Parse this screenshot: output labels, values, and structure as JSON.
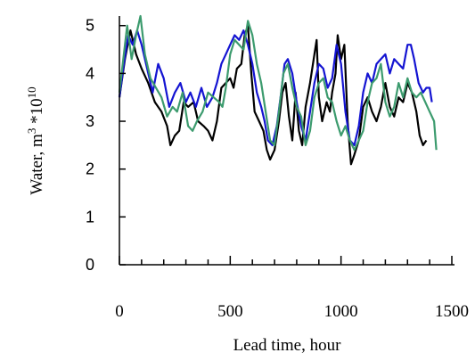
{
  "chart_data": {
    "type": "line",
    "xlabel": "Lead time, hour",
    "ylabel": {
      "base": "Water, m",
      "exp1": "3",
      "mid": " *10",
      "exp2": "10"
    },
    "xlim": [
      0,
      1500
    ],
    "ylim": [
      0,
      5.2
    ],
    "xticks": [
      0,
      500,
      1000,
      1500
    ],
    "xtick_labels": [
      "0",
      "500",
      "1000",
      "1500"
    ],
    "yticks": [
      0,
      1,
      2,
      3,
      4,
      5
    ],
    "ytick_labels": [
      "0",
      "1",
      "2",
      "3",
      "4",
      "5"
    ],
    "grid": false,
    "series": [
      {
        "color": "#000000",
        "points": [
          [
            0,
            3.5
          ],
          [
            25,
            4.3
          ],
          [
            50,
            4.9
          ],
          [
            75,
            4.4
          ],
          [
            100,
            4.1
          ],
          [
            130,
            3.8
          ],
          [
            160,
            3.4
          ],
          [
            190,
            3.2
          ],
          [
            215,
            2.9
          ],
          [
            230,
            2.5
          ],
          [
            250,
            2.7
          ],
          [
            270,
            2.8
          ],
          [
            290,
            3.4
          ],
          [
            310,
            3.3
          ],
          [
            335,
            3.4
          ],
          [
            355,
            3.0
          ],
          [
            380,
            2.9
          ],
          [
            400,
            2.8
          ],
          [
            420,
            2.6
          ],
          [
            440,
            3.0
          ],
          [
            460,
            3.7
          ],
          [
            480,
            3.8
          ],
          [
            500,
            3.9
          ],
          [
            515,
            3.7
          ],
          [
            530,
            4.1
          ],
          [
            550,
            4.2
          ],
          [
            565,
            4.8
          ],
          [
            580,
            5.0
          ],
          [
            595,
            4.0
          ],
          [
            610,
            3.2
          ],
          [
            630,
            3.0
          ],
          [
            650,
            2.8
          ],
          [
            665,
            2.4
          ],
          [
            680,
            2.2
          ],
          [
            700,
            2.4
          ],
          [
            720,
            3.0
          ],
          [
            735,
            3.6
          ],
          [
            750,
            3.8
          ],
          [
            765,
            3.1
          ],
          [
            780,
            2.6
          ],
          [
            795,
            3.6
          ],
          [
            810,
            2.8
          ],
          [
            825,
            2.5
          ],
          [
            840,
            3.3
          ],
          [
            860,
            3.8
          ],
          [
            880,
            4.4
          ],
          [
            890,
            4.7
          ],
          [
            900,
            3.5
          ],
          [
            915,
            3.0
          ],
          [
            935,
            3.4
          ],
          [
            950,
            3.2
          ],
          [
            960,
            3.6
          ],
          [
            975,
            4.0
          ],
          [
            985,
            4.8
          ],
          [
            1000,
            4.3
          ],
          [
            1015,
            4.6
          ],
          [
            1030,
            3.0
          ],
          [
            1045,
            2.1
          ],
          [
            1060,
            2.3
          ],
          [
            1080,
            2.6
          ],
          [
            1100,
            3.3
          ],
          [
            1120,
            3.5
          ],
          [
            1140,
            3.2
          ],
          [
            1160,
            3.0
          ],
          [
            1180,
            3.3
          ],
          [
            1200,
            3.8
          ],
          [
            1220,
            3.3
          ],
          [
            1240,
            3.1
          ],
          [
            1260,
            3.5
          ],
          [
            1280,
            3.4
          ],
          [
            1300,
            3.8
          ],
          [
            1320,
            3.6
          ],
          [
            1340,
            3.2
          ],
          [
            1355,
            2.7
          ],
          [
            1370,
            2.5
          ],
          [
            1385,
            2.6
          ]
        ]
      },
      {
        "color": "#1414d2",
        "points": [
          [
            0,
            3.5
          ],
          [
            20,
            4.2
          ],
          [
            40,
            4.8
          ],
          [
            60,
            4.6
          ],
          [
            80,
            4.9
          ],
          [
            100,
            4.6
          ],
          [
            125,
            4.1
          ],
          [
            150,
            3.6
          ],
          [
            175,
            4.2
          ],
          [
            200,
            3.9
          ],
          [
            225,
            3.3
          ],
          [
            250,
            3.6
          ],
          [
            275,
            3.8
          ],
          [
            300,
            3.4
          ],
          [
            320,
            3.6
          ],
          [
            345,
            3.3
          ],
          [
            370,
            3.7
          ],
          [
            395,
            3.3
          ],
          [
            420,
            3.5
          ],
          [
            440,
            3.8
          ],
          [
            460,
            4.2
          ],
          [
            480,
            4.4
          ],
          [
            500,
            4.6
          ],
          [
            520,
            4.8
          ],
          [
            540,
            4.7
          ],
          [
            560,
            4.9
          ],
          [
            580,
            4.6
          ],
          [
            600,
            4.2
          ],
          [
            620,
            3.6
          ],
          [
            640,
            3.3
          ],
          [
            655,
            3.0
          ],
          [
            670,
            2.6
          ],
          [
            690,
            2.5
          ],
          [
            710,
            2.9
          ],
          [
            730,
            3.6
          ],
          [
            745,
            4.2
          ],
          [
            760,
            4.3
          ],
          [
            780,
            4.0
          ],
          [
            800,
            3.4
          ],
          [
            820,
            2.9
          ],
          [
            840,
            2.6
          ],
          [
            860,
            3.2
          ],
          [
            880,
            3.8
          ],
          [
            900,
            4.2
          ],
          [
            920,
            4.1
          ],
          [
            940,
            3.7
          ],
          [
            960,
            3.9
          ],
          [
            980,
            4.6
          ],
          [
            1000,
            4.2
          ],
          [
            1020,
            3.2
          ],
          [
            1040,
            2.6
          ],
          [
            1060,
            2.5
          ],
          [
            1080,
            2.9
          ],
          [
            1100,
            3.6
          ],
          [
            1120,
            4.0
          ],
          [
            1140,
            3.8
          ],
          [
            1160,
            4.2
          ],
          [
            1180,
            4.3
          ],
          [
            1200,
            4.4
          ],
          [
            1220,
            4.0
          ],
          [
            1240,
            4.3
          ],
          [
            1260,
            4.2
          ],
          [
            1280,
            4.1
          ],
          [
            1300,
            4.6
          ],
          [
            1315,
            4.6
          ],
          [
            1330,
            4.3
          ],
          [
            1350,
            3.8
          ],
          [
            1370,
            3.6
          ],
          [
            1385,
            3.7
          ],
          [
            1400,
            3.7
          ],
          [
            1410,
            3.4
          ]
        ]
      },
      {
        "color": "#3c9b6e",
        "points": [
          [
            0,
            3.6
          ],
          [
            15,
            4.2
          ],
          [
            35,
            5.0
          ],
          [
            55,
            4.3
          ],
          [
            75,
            4.8
          ],
          [
            95,
            5.2
          ],
          [
            115,
            4.4
          ],
          [
            140,
            3.9
          ],
          [
            165,
            3.7
          ],
          [
            190,
            3.5
          ],
          [
            215,
            3.1
          ],
          [
            240,
            3.3
          ],
          [
            260,
            3.2
          ],
          [
            285,
            3.6
          ],
          [
            310,
            2.9
          ],
          [
            330,
            2.8
          ],
          [
            350,
            3.0
          ],
          [
            375,
            3.2
          ],
          [
            400,
            3.6
          ],
          [
            425,
            3.5
          ],
          [
            450,
            3.4
          ],
          [
            465,
            3.3
          ],
          [
            480,
            3.7
          ],
          [
            500,
            4.4
          ],
          [
            520,
            4.7
          ],
          [
            540,
            4.6
          ],
          [
            560,
            4.5
          ],
          [
            580,
            5.1
          ],
          [
            600,
            4.8
          ],
          [
            620,
            4.2
          ],
          [
            640,
            3.8
          ],
          [
            660,
            3.2
          ],
          [
            680,
            2.6
          ],
          [
            700,
            2.5
          ],
          [
            720,
            3.2
          ],
          [
            740,
            4.0
          ],
          [
            760,
            4.2
          ],
          [
            780,
            3.7
          ],
          [
            800,
            3.3
          ],
          [
            820,
            3.1
          ],
          [
            840,
            2.5
          ],
          [
            860,
            2.8
          ],
          [
            880,
            3.5
          ],
          [
            900,
            3.8
          ],
          [
            920,
            3.9
          ],
          [
            940,
            3.5
          ],
          [
            960,
            3.4
          ],
          [
            980,
            3.0
          ],
          [
            1000,
            2.7
          ],
          [
            1020,
            2.9
          ],
          [
            1040,
            2.6
          ],
          [
            1060,
            2.4
          ],
          [
            1080,
            2.6
          ],
          [
            1100,
            2.8
          ],
          [
            1120,
            3.4
          ],
          [
            1140,
            3.8
          ],
          [
            1160,
            3.9
          ],
          [
            1180,
            4.2
          ],
          [
            1200,
            3.4
          ],
          [
            1220,
            3.1
          ],
          [
            1240,
            3.3
          ],
          [
            1260,
            3.8
          ],
          [
            1280,
            3.5
          ],
          [
            1300,
            3.9
          ],
          [
            1320,
            3.6
          ],
          [
            1340,
            3.5
          ],
          [
            1360,
            3.6
          ],
          [
            1380,
            3.4
          ],
          [
            1400,
            3.2
          ],
          [
            1420,
            3.0
          ],
          [
            1430,
            2.4
          ]
        ]
      }
    ]
  }
}
